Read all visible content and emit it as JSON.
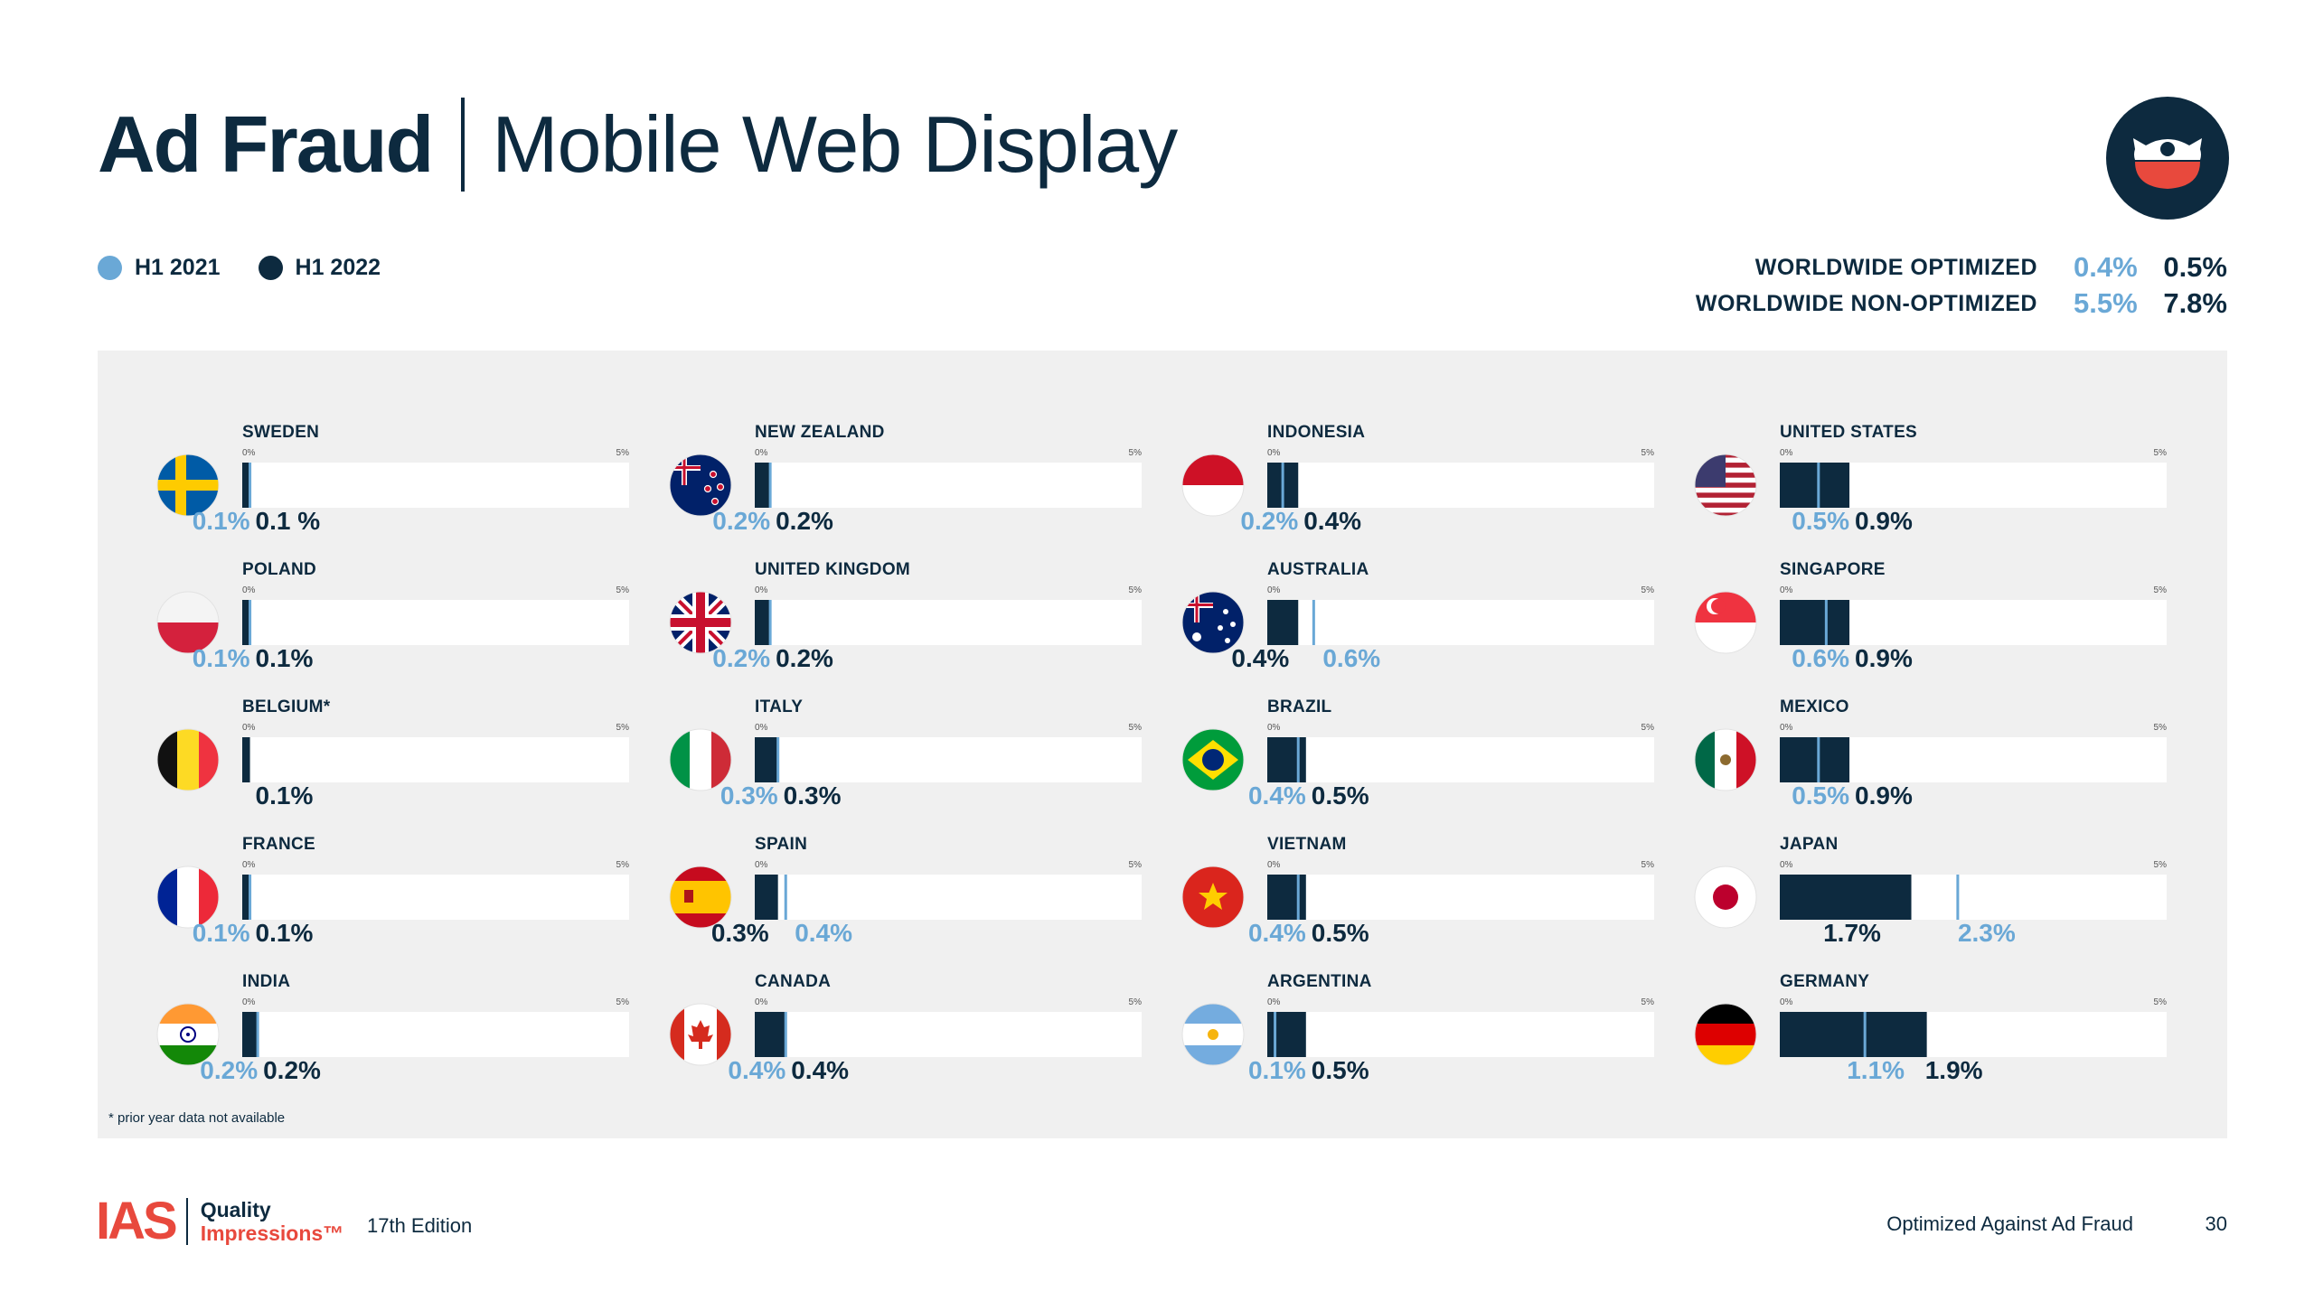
{
  "header": {
    "title_bold": "Ad Fraud",
    "title_light": "Mobile Web Display"
  },
  "legend": {
    "h1_2021": "H1 2021",
    "h1_2022": "H1 2022"
  },
  "colors": {
    "h1_2021": "#6aa8d6",
    "h1_2022": "#0d2a3f",
    "panel": "#f0f0f0",
    "accent": "#e8493d"
  },
  "worldwide": [
    {
      "label": "WORLDWIDE OPTIMIZED",
      "h1_2021": "0.4%",
      "h1_2022": "0.5%"
    },
    {
      "label": "WORLDWIDE NON-OPTIMIZED",
      "h1_2021": "5.5%",
      "h1_2022": "7.8%"
    }
  ],
  "chart_data": {
    "type": "bar",
    "axis": {
      "min": 0,
      "max": 5,
      "min_label": "0%",
      "max_label": "5%"
    },
    "series_names": [
      "H1 2021",
      "H1 2022"
    ],
    "countries": [
      {
        "name": "SWEDEN",
        "flag": "sweden-flag",
        "h1_2021": 0.1,
        "h1_2022": 0.1,
        "label_2021": "0.1%",
        "label_2022": "0.1 %",
        "order": "prior-first"
      },
      {
        "name": "POLAND",
        "flag": "poland-flag",
        "h1_2021": 0.1,
        "h1_2022": 0.1,
        "label_2021": "0.1%",
        "label_2022": "0.1%",
        "order": "prior-first"
      },
      {
        "name": "BELGIUM*",
        "flag": "belgium-flag",
        "h1_2021": null,
        "h1_2022": 0.1,
        "label_2021": "",
        "label_2022": "0.1%",
        "order": "prior-first"
      },
      {
        "name": "FRANCE",
        "flag": "france-flag",
        "h1_2021": 0.1,
        "h1_2022": 0.1,
        "label_2021": "0.1%",
        "label_2022": "0.1%",
        "order": "prior-first"
      },
      {
        "name": "INDIA",
        "flag": "india-flag",
        "h1_2021": 0.2,
        "h1_2022": 0.2,
        "label_2021": "0.2%",
        "label_2022": "0.2%",
        "order": "prior-first"
      },
      {
        "name": "NEW ZEALAND",
        "flag": "new-zealand-flag",
        "h1_2021": 0.2,
        "h1_2022": 0.2,
        "label_2021": "0.2%",
        "label_2022": "0.2%",
        "order": "prior-first"
      },
      {
        "name": "UNITED KINGDOM",
        "flag": "united-kingdom-flag",
        "h1_2021": 0.2,
        "h1_2022": 0.2,
        "label_2021": "0.2%",
        "label_2022": "0.2%",
        "order": "prior-first"
      },
      {
        "name": "ITALY",
        "flag": "italy-flag",
        "h1_2021": 0.3,
        "h1_2022": 0.3,
        "label_2021": "0.3%",
        "label_2022": "0.3%",
        "order": "prior-first"
      },
      {
        "name": "SPAIN",
        "flag": "spain-flag",
        "h1_2021": 0.4,
        "h1_2022": 0.3,
        "label_2021": "0.4%",
        "label_2022": "0.3%",
        "order": "current-first"
      },
      {
        "name": "CANADA",
        "flag": "canada-flag",
        "h1_2021": 0.4,
        "h1_2022": 0.4,
        "label_2021": "0.4%",
        "label_2022": "0.4%",
        "order": "prior-first"
      },
      {
        "name": "INDONESIA",
        "flag": "indonesia-flag",
        "h1_2021": 0.2,
        "h1_2022": 0.4,
        "label_2021": "0.2%",
        "label_2022": "0.4%",
        "order": "prior-first"
      },
      {
        "name": "AUSTRALIA",
        "flag": "australia-flag",
        "h1_2021": 0.6,
        "h1_2022": 0.4,
        "label_2021": "0.6%",
        "label_2022": "0.4%",
        "order": "current-first"
      },
      {
        "name": "BRAZIL",
        "flag": "brazil-flag",
        "h1_2021": 0.4,
        "h1_2022": 0.5,
        "label_2021": "0.4%",
        "label_2022": "0.5%",
        "order": "prior-first"
      },
      {
        "name": "VIETNAM",
        "flag": "vietnam-flag",
        "h1_2021": 0.4,
        "h1_2022": 0.5,
        "label_2021": "0.4%",
        "label_2022": "0.5%",
        "order": "prior-first"
      },
      {
        "name": "ARGENTINA",
        "flag": "argentina-flag",
        "h1_2021": 0.1,
        "h1_2022": 0.5,
        "label_2021": "0.1%",
        "label_2022": "0.5%",
        "order": "prior-first"
      },
      {
        "name": "UNITED STATES",
        "flag": "united-states-flag",
        "h1_2021": 0.5,
        "h1_2022": 0.9,
        "label_2021": "0.5%",
        "label_2022": "0.9%",
        "order": "prior-first"
      },
      {
        "name": "SINGAPORE",
        "flag": "singapore-flag",
        "h1_2021": 0.6,
        "h1_2022": 0.9,
        "label_2021": "0.6%",
        "label_2022": "0.9%",
        "order": "prior-first"
      },
      {
        "name": "MEXICO",
        "flag": "mexico-flag",
        "h1_2021": 0.5,
        "h1_2022": 0.9,
        "label_2021": "0.5%",
        "label_2022": "0.9%",
        "order": "prior-first"
      },
      {
        "name": "JAPAN",
        "flag": "japan-flag",
        "h1_2021": 2.3,
        "h1_2022": 1.7,
        "label_2021": "2.3%",
        "label_2022": "1.7%",
        "order": "current-first"
      },
      {
        "name": "GERMANY",
        "flag": "germany-flag",
        "h1_2021": 1.1,
        "h1_2022": 1.9,
        "label_2021": "1.1%",
        "label_2022": "1.9%",
        "order": "prior-first"
      }
    ]
  },
  "footnote": "* prior year data not available",
  "footer": {
    "brand": "IAS",
    "brand_line1": "Quality",
    "brand_line2": "Impressions™",
    "edition": "17th Edition",
    "right_text": "Optimized Against Ad Fraud",
    "page": "30"
  }
}
